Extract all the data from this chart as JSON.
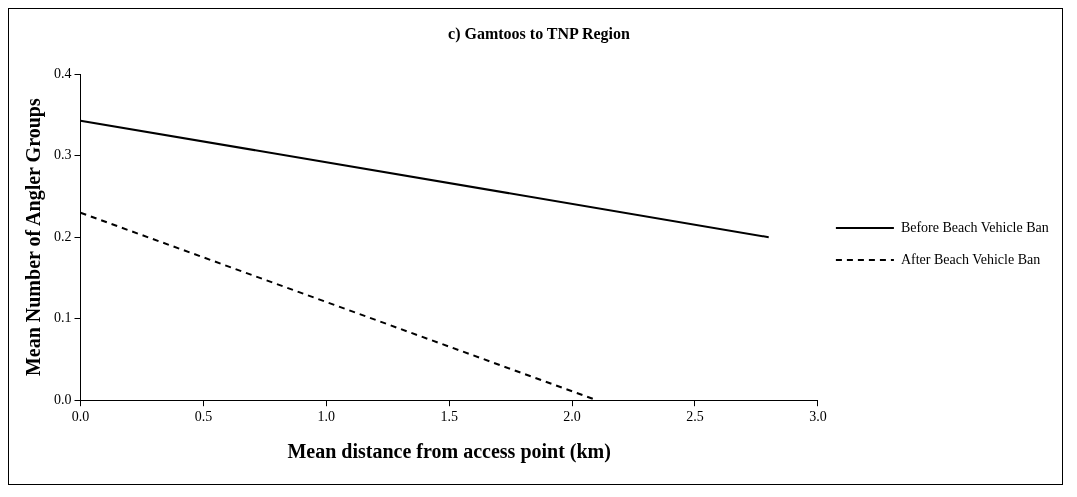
{
  "chart_data": {
    "type": "line",
    "title": "c) Gamtoos to TNP Region",
    "xlabel": "Mean distance from access point (km)",
    "ylabel": "Mean Number of Angler Groups",
    "series": [
      {
        "name": "Before Beach Vehicle Ban",
        "color": "#000000",
        "x": [
          0,
          2.8
        ],
        "values": [
          0.343,
          0.2
        ],
        "line_style": "solid"
      },
      {
        "name": "After Beach Vehicle Ban",
        "color": "#000000",
        "x": [
          0,
          2.1
        ],
        "values": [
          0.23,
          0
        ],
        "line_style": "dashed"
      }
    ],
    "xlim": [
      0,
      3
    ],
    "xticks": [
      {
        "value": 0,
        "label": "0.0"
      },
      {
        "value": 0.5,
        "label": "0.5"
      },
      {
        "value": 1,
        "label": "1.0"
      },
      {
        "value": 1.5,
        "label": "1.5"
      },
      {
        "value": 2,
        "label": "2.0"
      },
      {
        "value": 2.5,
        "label": "2.5"
      },
      {
        "value": 3,
        "label": "3.0"
      }
    ],
    "ylim": [
      0,
      0.4
    ],
    "yticks": [
      {
        "value": 0,
        "label": "0.0"
      },
      {
        "value": 0.1,
        "label": "0.1"
      },
      {
        "value": 0.2,
        "label": "0.2"
      },
      {
        "value": 0.3,
        "label": "0.3"
      },
      {
        "value": 0.4,
        "label": "0.4"
      }
    ],
    "grid": false,
    "legend": "right",
    "marker": "none"
  }
}
